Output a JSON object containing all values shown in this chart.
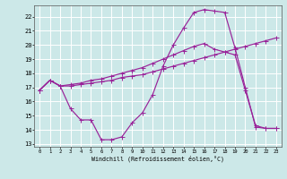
{
  "xlabel": "Windchill (Refroidissement éolien,°C)",
  "bg_color": "#cce8e8",
  "grid_color": "#ffffff",
  "line_color": "#992299",
  "ylim": [
    12.8,
    22.8
  ],
  "xlim": [
    -0.5,
    23.5
  ],
  "yticks": [
    13,
    14,
    15,
    16,
    17,
    18,
    19,
    20,
    21,
    22
  ],
  "xticks": [
    0,
    1,
    2,
    3,
    4,
    5,
    6,
    7,
    8,
    9,
    10,
    11,
    12,
    13,
    14,
    15,
    16,
    17,
    18,
    19,
    20,
    21,
    22,
    23
  ],
  "s1x": [
    0,
    1,
    2,
    3,
    4,
    5,
    6,
    7,
    8,
    9,
    10,
    11,
    12,
    13,
    14,
    15,
    16,
    17,
    18,
    19,
    20,
    21,
    22,
    23
  ],
  "s1y": [
    16.8,
    17.5,
    17.1,
    15.5,
    14.7,
    14.7,
    13.3,
    13.3,
    13.5,
    14.5,
    15.2,
    16.5,
    18.5,
    20.0,
    21.2,
    22.3,
    22.5,
    22.4,
    22.3,
    19.8,
    17.0,
    14.2,
    14.1,
    14.1
  ],
  "s2x": [
    0,
    1,
    2,
    3,
    4,
    5,
    6,
    7,
    8,
    9,
    10,
    11,
    12,
    13,
    14,
    15,
    16,
    17,
    18,
    19,
    20,
    21,
    22,
    23
  ],
  "s2y": [
    16.8,
    17.5,
    17.1,
    17.1,
    17.2,
    17.3,
    17.4,
    17.5,
    17.7,
    17.8,
    17.9,
    18.1,
    18.3,
    18.5,
    18.7,
    18.9,
    19.1,
    19.3,
    19.5,
    19.7,
    19.9,
    20.1,
    20.3,
    20.5
  ],
  "s3x": [
    0,
    1,
    2,
    3,
    4,
    5,
    6,
    7,
    8,
    9,
    10,
    11,
    12,
    13,
    14,
    15,
    16,
    17,
    18,
    19,
    20,
    21,
    22,
    23
  ],
  "s3y": [
    16.8,
    17.5,
    17.1,
    17.2,
    17.3,
    17.5,
    17.6,
    17.8,
    18.0,
    18.2,
    18.4,
    18.7,
    19.0,
    19.3,
    19.6,
    19.9,
    20.1,
    19.7,
    19.5,
    19.3,
    16.8,
    14.3,
    14.1,
    14.1
  ]
}
